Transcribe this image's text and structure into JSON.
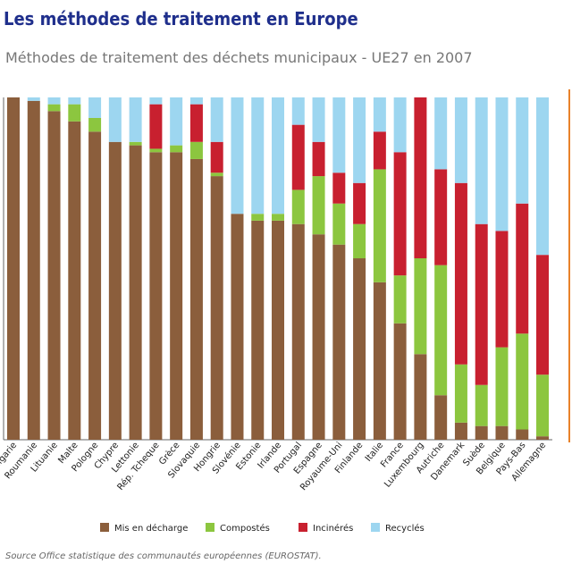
{
  "chart_data": {
    "type": "stacked_bar",
    "title": "Les méthodes de traitement en Europe",
    "subtitle": "Méthodes de traitement des déchets municipaux - UE27 en 2007",
    "source": "Source Office statistique des communautés européennes (EUROSTAT).",
    "categories": [
      "Bulgarie",
      "Roumanie",
      "Lituanie",
      "Malte",
      "Pologne",
      "Chypre",
      "Lettonie",
      "Rép. Tcheque",
      "Grèce",
      "Slovaquie",
      "Hongrie",
      "Slovénie",
      "Estonie",
      "Irlande",
      "Portugal",
      "Espagne",
      "Royaume-Uni",
      "Finlande",
      "Italie",
      "France",
      "Luxembourg",
      "Autriche",
      "Danemark",
      "Suède",
      "Belgique",
      "Pays-Bas",
      "Allemagne"
    ],
    "ylim": [
      0,
      100
    ],
    "series": [
      {
        "name": "Mis en décharge",
        "color": "#8b5e3c",
        "values": [
          100,
          99,
          96,
          93,
          90,
          87,
          86,
          84,
          84,
          82,
          77,
          66,
          64,
          64,
          63,
          60,
          57,
          53,
          46,
          34,
          25,
          13,
          5,
          4,
          4,
          3,
          1
        ]
      },
      {
        "name": "Compostés",
        "color": "#8cc63f",
        "values": [
          0,
          0,
          2,
          5,
          4,
          0,
          1,
          1,
          2,
          5,
          1,
          0,
          2,
          2,
          10,
          17,
          12,
          10,
          33,
          14,
          28,
          38,
          17,
          12,
          23,
          28,
          18
        ]
      },
      {
        "name": "Incinérés",
        "color": "#c8202f",
        "values": [
          0,
          0,
          0,
          0,
          0,
          0,
          0,
          13,
          0,
          11,
          9,
          0,
          0,
          0,
          19,
          10,
          9,
          12,
          11,
          36,
          47,
          28,
          53,
          47,
          34,
          38,
          35
        ]
      },
      {
        "name": "Recyclés",
        "color": "#9dd6f0",
        "values": [
          0,
          1,
          2,
          2,
          6,
          13,
          13,
          2,
          14,
          2,
          13,
          34,
          34,
          34,
          8,
          13,
          22,
          25,
          10,
          16,
          0,
          21,
          25,
          37,
          39,
          31,
          46
        ]
      }
    ]
  }
}
